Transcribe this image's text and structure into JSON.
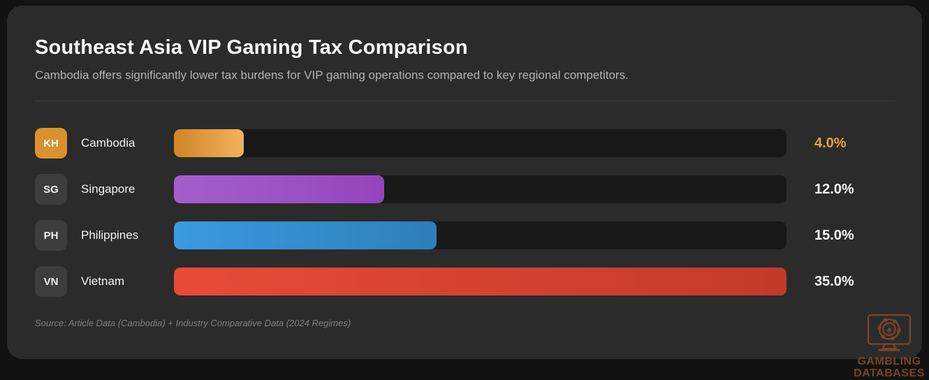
{
  "header": {
    "title": "Southeast Asia VIP Gaming Tax Comparison",
    "subtitle": "Cambodia offers significantly lower tax burdens for VIP gaming operations compared to key regional competitors."
  },
  "chart_data": {
    "type": "bar",
    "orientation": "horizontal",
    "title": "Southeast Asia VIP Gaming Tax Comparison",
    "categories": [
      "Cambodia",
      "Singapore",
      "Philippines",
      "Vietnam"
    ],
    "values": [
      4.0,
      12.0,
      15.0,
      35.0
    ],
    "value_labels": [
      "4.0%",
      "12.0%",
      "15.0%",
      "35.0%"
    ],
    "unit": "%",
    "xlim": [
      0,
      35
    ],
    "grid": false,
    "legend": false
  },
  "rows": [
    {
      "badge": "KH",
      "label": "Cambodia",
      "value_label": "4.0%",
      "percent_of_max": 11.43,
      "bar_gradient": [
        "#d08527",
        "#f3b35c"
      ],
      "badge_bg": "#d9922e",
      "badge_text_color": "#ffffff",
      "value_color": "#e9a23b"
    },
    {
      "badge": "SG",
      "label": "Singapore",
      "value_label": "12.0%",
      "percent_of_max": 34.29,
      "bar_gradient": [
        "#a55fcd",
        "#9644bd"
      ],
      "badge_bg": "#3d3d3d",
      "badge_text_color": "#f0f0f0",
      "value_color": "#f5f5f5"
    },
    {
      "badge": "PH",
      "label": "Philippines",
      "value_label": "15.0%",
      "percent_of_max": 42.86,
      "bar_gradient": [
        "#3b9ae1",
        "#2d7fba"
      ],
      "badge_bg": "#3d3d3d",
      "badge_text_color": "#f0f0f0",
      "value_color": "#f5f5f5"
    },
    {
      "badge": "VN",
      "label": "Vietnam",
      "value_label": "35.0%",
      "percent_of_max": 100,
      "bar_gradient": [
        "#e84a38",
        "#c23a2b"
      ],
      "badge_bg": "#3d3d3d",
      "badge_text_color": "#f0f0f0",
      "value_color": "#f5f5f5"
    }
  ],
  "footer": {
    "source": "Source: Article Data (Cambodia) + Industry Comparative Data (2024 Regimes)",
    "logo": {
      "line1": "GAMBLING",
      "line2": "DATABASES"
    }
  }
}
